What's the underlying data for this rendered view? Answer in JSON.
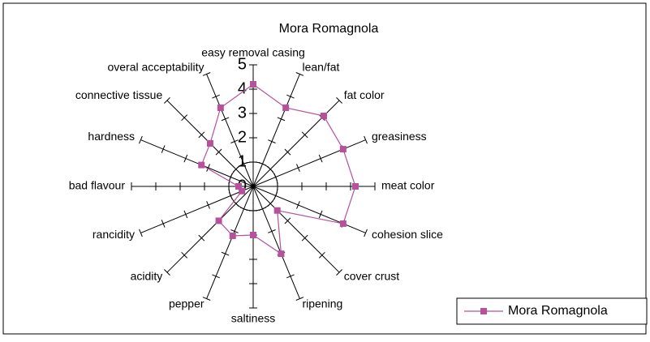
{
  "chart_data": {
    "type": "radar",
    "title": "Mora Romagnola",
    "categories": [
      "easy removal casing",
      "lean/fat",
      "fat color",
      "greasiness",
      "meat color",
      "cohesion slice",
      "cover  crust",
      "ripening",
      "saltiness",
      "pepper",
      "acidity",
      "rancidity",
      "bad  flavour",
      "hardness",
      "connective  tissue",
      "overal acceptability"
    ],
    "series": [
      {
        "name": "Mora Romagnola",
        "color": "#b5529b",
        "values": [
          4.2,
          3.5,
          4.1,
          4.0,
          4.2,
          4.0,
          1.4,
          3.0,
          2.0,
          2.2,
          2.0,
          0.5,
          0.6,
          2.3,
          2.5,
          3.5
        ]
      }
    ],
    "rlim": [
      0,
      5
    ],
    "rticks": [
      0,
      1,
      2,
      3,
      4,
      5
    ],
    "legend": "bottom-right"
  }
}
